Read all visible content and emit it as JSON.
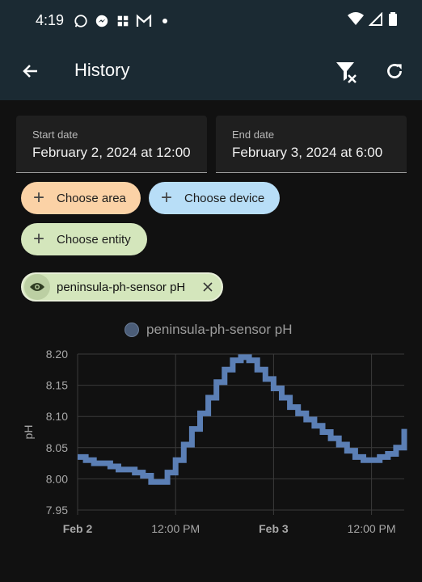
{
  "status": {
    "time": "4:19"
  },
  "appbar": {
    "title": "History"
  },
  "start_date": {
    "label": "Start date",
    "value": "February 2, 2024 at 12:00"
  },
  "end_date": {
    "label": "End date",
    "value": "February 3, 2024 at 6:00"
  },
  "chips": {
    "area": "Choose area",
    "device": "Choose device",
    "entity": "Choose entity"
  },
  "selected_entity": "peninsula-ph-sensor pH",
  "colors": {
    "background": "#111111",
    "appbar": "#1b2a33",
    "area_chip": "#fbd2a6",
    "device_chip": "#b8def7",
    "entity_chip": "#d4e6bc",
    "series": "#5b7fb5"
  },
  "chart_data": {
    "type": "line",
    "legend": "peninsula-ph-sensor pH",
    "ylabel": "pH",
    "ylim": [
      7.95,
      8.2
    ],
    "xlim_hours": [
      0,
      40
    ],
    "y_ticks": [
      "8.20",
      "8.15",
      "8.10",
      "8.05",
      "8.00",
      "7.95"
    ],
    "y_tick_values": [
      8.2,
      8.15,
      8.1,
      8.05,
      8.0,
      7.95
    ],
    "x_ticks": [
      "Feb 2",
      "12:00 PM",
      "Feb 3",
      "12:00 PM"
    ],
    "x_tick_hours": [
      0,
      12,
      24,
      36
    ],
    "series": [
      {
        "name": "peninsula-ph-sensor pH",
        "x": [
          0,
          1,
          2,
          3,
          4,
          5,
          6,
          7,
          8,
          9,
          10,
          11,
          12,
          13,
          14,
          15,
          16,
          17,
          18,
          19,
          20,
          21,
          22,
          23,
          24,
          25,
          26,
          27,
          28,
          29,
          30,
          31,
          32,
          33,
          34,
          35,
          36,
          37,
          38,
          39,
          40
        ],
        "values": [
          8.035,
          8.03,
          8.025,
          8.025,
          8.02,
          8.015,
          8.015,
          8.01,
          8.005,
          7.995,
          7.995,
          8.01,
          8.03,
          8.055,
          8.08,
          8.105,
          8.13,
          8.155,
          8.175,
          8.19,
          8.195,
          8.19,
          8.175,
          8.16,
          8.145,
          8.13,
          8.115,
          8.105,
          8.095,
          8.085,
          8.075,
          8.065,
          8.055,
          8.045,
          8.035,
          8.03,
          8.03,
          8.035,
          8.04,
          8.05,
          8.08
        ]
      }
    ]
  }
}
